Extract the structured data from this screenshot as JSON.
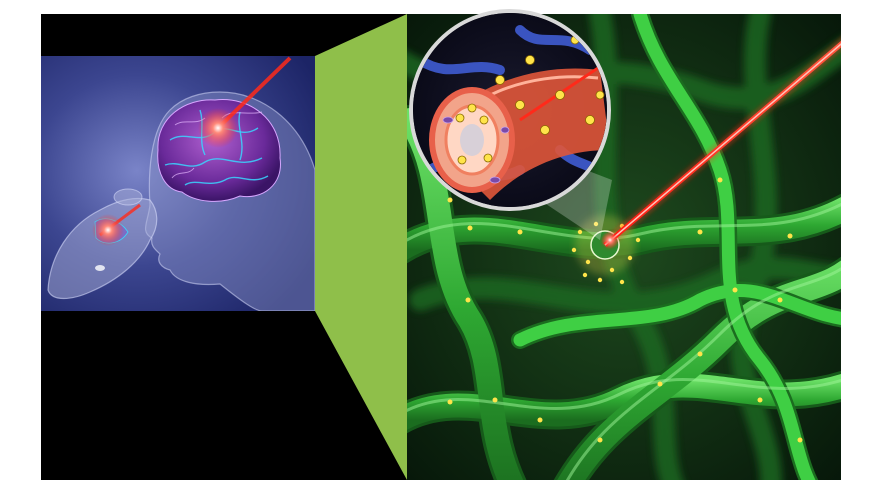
{
  "figure": {
    "background": "#ffffff",
    "panel_black": "#000000",
    "connector_green": "#8fbf4a",
    "laser_red": "#ff2a1a",
    "glow_yellow": "#ffe44a",
    "fiber_green": "#35b83a",
    "icons": {
      "left_panel": "mouse-and-human-head-with-brain-icon",
      "right_panel": "neural-fiber-network-with-blood-vessel-inset-icon"
    }
  }
}
